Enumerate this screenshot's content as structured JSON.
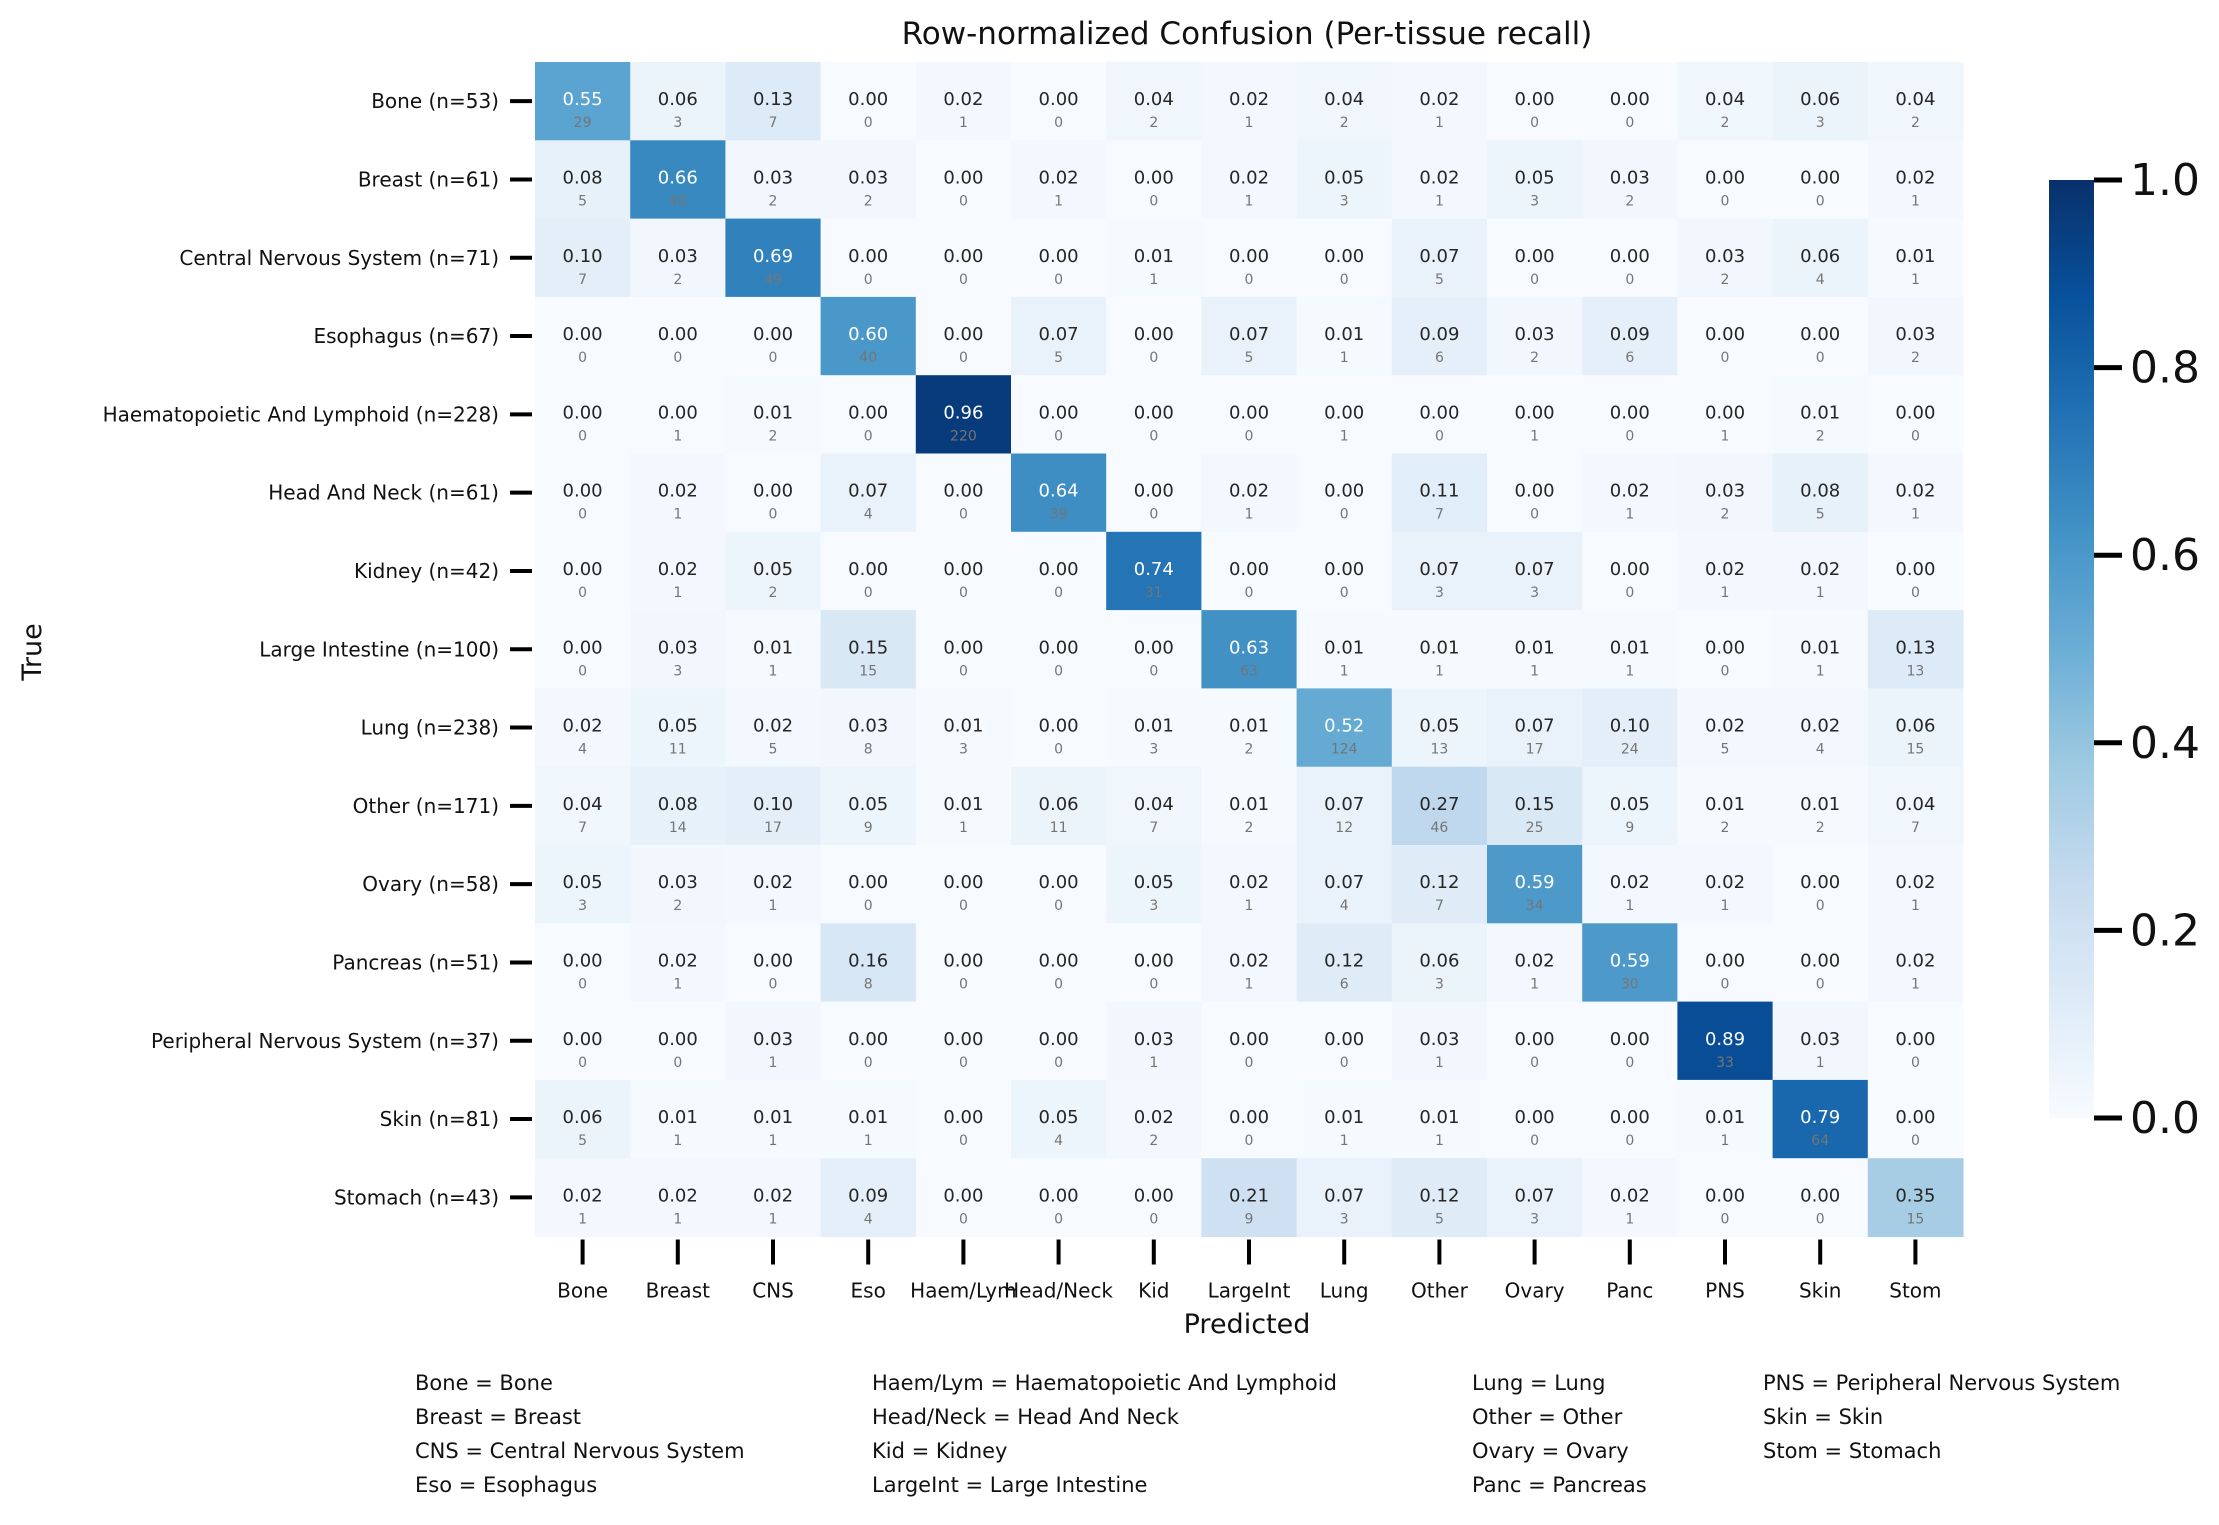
{
  "chart_data": {
    "type": "heatmap",
    "title": "Row-normalized Confusion (Per-tissue recall)",
    "xlabel": "Predicted",
    "ylabel": "True",
    "row_labels": [
      "Bone (n=53)",
      "Breast (n=61)",
      "Central Nervous System (n=71)",
      "Esophagus (n=67)",
      "Haematopoietic And Lymphoid (n=228)",
      "Head And Neck (n=61)",
      "Kidney (n=42)",
      "Large Intestine (n=100)",
      "Lung (n=238)",
      "Other (n=171)",
      "Ovary (n=58)",
      "Pancreas (n=51)",
      "Peripheral Nervous System (n=37)",
      "Skin (n=81)",
      "Stomach (n=43)"
    ],
    "col_labels": [
      "Bone",
      "Breast",
      "CNS",
      "Eso",
      "Haem/Lym",
      "Head/Neck",
      "Kid",
      "LargeInt",
      "Lung",
      "Other",
      "Ovary",
      "Panc",
      "PNS",
      "Skin",
      "Stom"
    ],
    "values": [
      [
        0.55,
        0.06,
        0.13,
        0.0,
        0.02,
        0.0,
        0.04,
        0.02,
        0.04,
        0.02,
        0.0,
        0.0,
        0.04,
        0.06,
        0.04
      ],
      [
        0.08,
        0.66,
        0.03,
        0.03,
        0.0,
        0.02,
        0.0,
        0.02,
        0.05,
        0.02,
        0.05,
        0.03,
        0.0,
        0.0,
        0.02
      ],
      [
        0.1,
        0.03,
        0.69,
        0.0,
        0.0,
        0.0,
        0.01,
        0.0,
        0.0,
        0.07,
        0.0,
        0.0,
        0.03,
        0.06,
        0.01
      ],
      [
        0.0,
        0.0,
        0.0,
        0.6,
        0.0,
        0.07,
        0.0,
        0.07,
        0.01,
        0.09,
        0.03,
        0.09,
        0.0,
        0.0,
        0.03
      ],
      [
        0.0,
        0.0,
        0.01,
        0.0,
        0.96,
        0.0,
        0.0,
        0.0,
        0.0,
        0.0,
        0.0,
        0.0,
        0.0,
        0.01,
        0.0
      ],
      [
        0.0,
        0.02,
        0.0,
        0.07,
        0.0,
        0.64,
        0.0,
        0.02,
        0.0,
        0.11,
        0.0,
        0.02,
        0.03,
        0.08,
        0.02
      ],
      [
        0.0,
        0.02,
        0.05,
        0.0,
        0.0,
        0.0,
        0.74,
        0.0,
        0.0,
        0.07,
        0.07,
        0.0,
        0.02,
        0.02,
        0.0
      ],
      [
        0.0,
        0.03,
        0.01,
        0.15,
        0.0,
        0.0,
        0.0,
        0.63,
        0.01,
        0.01,
        0.01,
        0.01,
        0.0,
        0.01,
        0.13
      ],
      [
        0.02,
        0.05,
        0.02,
        0.03,
        0.01,
        0.0,
        0.01,
        0.01,
        0.52,
        0.05,
        0.07,
        0.1,
        0.02,
        0.02,
        0.06
      ],
      [
        0.04,
        0.08,
        0.1,
        0.05,
        0.01,
        0.06,
        0.04,
        0.01,
        0.07,
        0.27,
        0.15,
        0.05,
        0.01,
        0.01,
        0.04
      ],
      [
        0.05,
        0.03,
        0.02,
        0.0,
        0.0,
        0.0,
        0.05,
        0.02,
        0.07,
        0.12,
        0.59,
        0.02,
        0.02,
        0.0,
        0.02
      ],
      [
        0.0,
        0.02,
        0.0,
        0.16,
        0.0,
        0.0,
        0.0,
        0.02,
        0.12,
        0.06,
        0.02,
        0.59,
        0.0,
        0.0,
        0.02
      ],
      [
        0.0,
        0.0,
        0.03,
        0.0,
        0.0,
        0.0,
        0.03,
        0.0,
        0.0,
        0.03,
        0.0,
        0.0,
        0.89,
        0.03,
        0.0
      ],
      [
        0.06,
        0.01,
        0.01,
        0.01,
        0.0,
        0.05,
        0.02,
        0.0,
        0.01,
        0.01,
        0.0,
        0.0,
        0.01,
        0.79,
        0.0
      ],
      [
        0.02,
        0.02,
        0.02,
        0.09,
        0.0,
        0.0,
        0.0,
        0.21,
        0.07,
        0.12,
        0.07,
        0.02,
        0.0,
        0.0,
        0.35
      ]
    ],
    "counts": [
      [
        29,
        3,
        7,
        0,
        1,
        0,
        2,
        1,
        2,
        1,
        0,
        0,
        2,
        3,
        2
      ],
      [
        5,
        40,
        2,
        2,
        0,
        1,
        0,
        1,
        3,
        1,
        3,
        2,
        0,
        0,
        1
      ],
      [
        7,
        2,
        49,
        0,
        0,
        0,
        1,
        0,
        0,
        5,
        0,
        0,
        2,
        4,
        1
      ],
      [
        0,
        0,
        0,
        40,
        0,
        5,
        0,
        5,
        1,
        6,
        2,
        6,
        0,
        0,
        2
      ],
      [
        0,
        1,
        2,
        0,
        220,
        0,
        0,
        0,
        1,
        0,
        1,
        0,
        1,
        2,
        0
      ],
      [
        0,
        1,
        0,
        4,
        0,
        39,
        0,
        1,
        0,
        7,
        0,
        1,
        2,
        5,
        1
      ],
      [
        0,
        1,
        2,
        0,
        0,
        0,
        31,
        0,
        0,
        3,
        3,
        0,
        1,
        1,
        0
      ],
      [
        0,
        3,
        1,
        15,
        0,
        0,
        0,
        63,
        1,
        1,
        1,
        1,
        0,
        1,
        13
      ],
      [
        4,
        11,
        5,
        8,
        3,
        0,
        3,
        2,
        124,
        13,
        17,
        24,
        5,
        4,
        15
      ],
      [
        7,
        14,
        17,
        9,
        1,
        11,
        7,
        2,
        12,
        46,
        25,
        9,
        2,
        2,
        7
      ],
      [
        3,
        2,
        1,
        0,
        0,
        0,
        3,
        1,
        4,
        7,
        34,
        1,
        1,
        0,
        1
      ],
      [
        0,
        1,
        0,
        8,
        0,
        0,
        0,
        1,
        6,
        3,
        1,
        30,
        0,
        0,
        1
      ],
      [
        0,
        0,
        1,
        0,
        0,
        0,
        1,
        0,
        0,
        1,
        0,
        0,
        33,
        1,
        0
      ],
      [
        5,
        1,
        1,
        1,
        0,
        4,
        2,
        0,
        1,
        1,
        0,
        0,
        1,
        64,
        0
      ],
      [
        1,
        1,
        1,
        4,
        0,
        0,
        0,
        9,
        3,
        5,
        3,
        1,
        0,
        0,
        15
      ]
    ],
    "colorbar": {
      "colormap": "Blues",
      "range": [
        0.0,
        1.0
      ],
      "ticks": [
        "0.0",
        "0.2",
        "0.4",
        "0.6",
        "0.8",
        "1.0"
      ]
    }
  },
  "abbreviations": [
    [
      "Bone = Bone",
      "Breast = Breast",
      "CNS = Central Nervous System",
      "Eso = Esophagus"
    ],
    [
      "Haem/Lym = Haematopoietic And Lymphoid",
      "Head/Neck = Head And Neck",
      "Kid = Kidney",
      "LargeInt = Large Intestine"
    ],
    [
      "Lung = Lung",
      "Other = Other",
      "Ovary = Ovary",
      "Panc = Pancreas"
    ],
    [
      "PNS = Peripheral Nervous System",
      "Skin = Skin",
      "Stom = Stomach"
    ]
  ]
}
